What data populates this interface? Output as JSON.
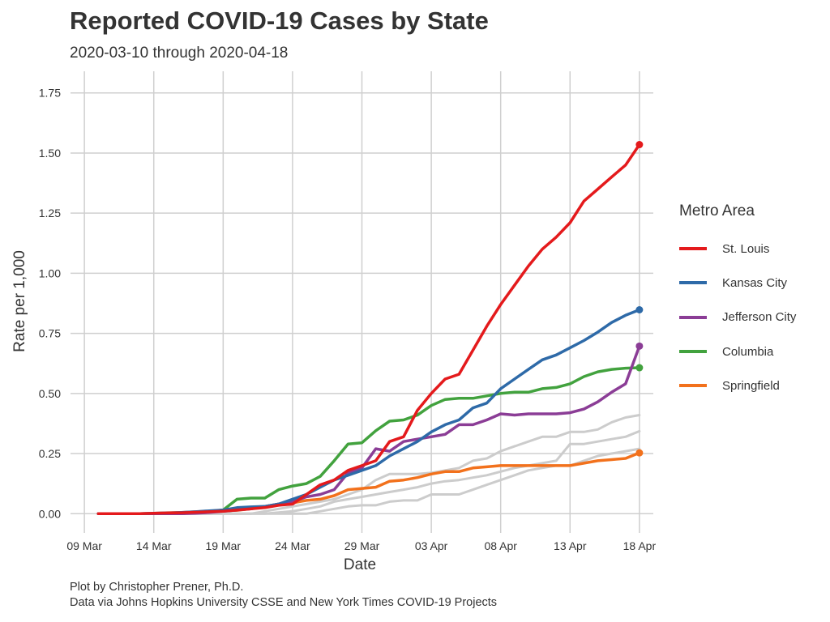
{
  "header": {
    "title": "Reported COVID-19 Cases by State",
    "subtitle": "2020-03-10 through 2020-04-18"
  },
  "footer": {
    "caption_line1": "Plot by Christopher Prener, Ph.D.",
    "caption_line2": "Data via Johns Hopkins University CSSE and New York Times COVID-19 Projects"
  },
  "chart_data": {
    "type": "line",
    "title": "Reported COVID-19 Cases by State",
    "subtitle": "2020-03-10 through 2020-04-18",
    "xlabel": "Date",
    "ylabel": "Rate per 1,000",
    "xlim": [
      "2020-03-08",
      "2020-04-19"
    ],
    "ylim": [
      -0.08,
      1.84
    ],
    "x_ticks": [
      "2020-03-09",
      "2020-03-14",
      "2020-03-19",
      "2020-03-24",
      "2020-03-29",
      "2020-04-03",
      "2020-04-08",
      "2020-04-13",
      "2020-04-18"
    ],
    "x_tick_labels": [
      "09 Mar",
      "14 Mar",
      "19 Mar",
      "24 Mar",
      "29 Mar",
      "03 Apr",
      "08 Apr",
      "13 Apr",
      "18 Apr"
    ],
    "y_ticks": [
      0,
      0.25,
      0.5,
      0.75,
      1.0,
      1.25,
      1.5,
      1.75
    ],
    "y_tick_labels": [
      "0.00",
      "0.25",
      "0.50",
      "0.75",
      "1.00",
      "1.25",
      "1.50",
      "1.75"
    ],
    "grid": true,
    "legend_title": "Metro Area",
    "legend_position": "right",
    "x": [
      "2020-03-10",
      "2020-03-11",
      "2020-03-12",
      "2020-03-13",
      "2020-03-14",
      "2020-03-15",
      "2020-03-16",
      "2020-03-17",
      "2020-03-18",
      "2020-03-19",
      "2020-03-20",
      "2020-03-21",
      "2020-03-22",
      "2020-03-23",
      "2020-03-24",
      "2020-03-25",
      "2020-03-26",
      "2020-03-27",
      "2020-03-28",
      "2020-03-29",
      "2020-03-30",
      "2020-03-31",
      "2020-04-01",
      "2020-04-02",
      "2020-04-03",
      "2020-04-04",
      "2020-04-05",
      "2020-04-06",
      "2020-04-07",
      "2020-04-08",
      "2020-04-09",
      "2020-04-10",
      "2020-04-11",
      "2020-04-12",
      "2020-04-13",
      "2020-04-14",
      "2020-04-15",
      "2020-04-16",
      "2020-04-17",
      "2020-04-18"
    ],
    "series": [
      {
        "name": "St. Louis",
        "color": "#e41a1c",
        "highlight": true,
        "values": [
          0,
          0,
          0,
          0,
          0.002,
          0.003,
          0.004,
          0.006,
          0.008,
          0.01,
          0.015,
          0.02,
          0.025,
          0.035,
          0.04,
          0.08,
          0.12,
          0.14,
          0.18,
          0.2,
          0.22,
          0.3,
          0.32,
          0.43,
          0.5,
          0.56,
          0.58,
          0.68,
          0.78,
          0.87,
          0.95,
          1.03,
          1.1,
          1.15,
          1.21,
          1.3,
          1.35,
          1.4,
          1.45,
          1.535
        ]
      },
      {
        "name": "Kansas City",
        "color": "#2e6aa8",
        "highlight": true,
        "values": [
          0,
          0,
          0,
          0,
          0.002,
          0.003,
          0.005,
          0.008,
          0.012,
          0.015,
          0.025,
          0.028,
          0.03,
          0.04,
          0.06,
          0.08,
          0.11,
          0.14,
          0.16,
          0.18,
          0.2,
          0.24,
          0.27,
          0.3,
          0.34,
          0.37,
          0.39,
          0.44,
          0.46,
          0.52,
          0.56,
          0.6,
          0.64,
          0.66,
          0.69,
          0.72,
          0.755,
          0.795,
          0.825,
          0.848
        ]
      },
      {
        "name": "Jefferson City",
        "color": "#8b3d96",
        "highlight": true,
        "values": [
          0,
          0,
          0,
          0,
          0,
          0,
          0,
          0.002,
          0.005,
          0.01,
          0.015,
          0.02,
          0.03,
          0.04,
          0.05,
          0.07,
          0.08,
          0.1,
          0.17,
          0.19,
          0.27,
          0.26,
          0.3,
          0.31,
          0.32,
          0.33,
          0.37,
          0.37,
          0.39,
          0.415,
          0.41,
          0.415,
          0.415,
          0.415,
          0.42,
          0.435,
          0.465,
          0.505,
          0.54,
          0.697
        ]
      },
      {
        "name": "Columbia",
        "color": "#42a23e",
        "highlight": true,
        "values": [
          0,
          0,
          0,
          0,
          0,
          0,
          0,
          0.005,
          0.01,
          0.015,
          0.06,
          0.065,
          0.065,
          0.1,
          0.115,
          0.125,
          0.155,
          0.22,
          0.29,
          0.295,
          0.345,
          0.385,
          0.39,
          0.41,
          0.45,
          0.475,
          0.48,
          0.48,
          0.49,
          0.5,
          0.505,
          0.505,
          0.52,
          0.525,
          0.54,
          0.57,
          0.59,
          0.6,
          0.605,
          0.607
        ]
      },
      {
        "name": "Springfield",
        "color": "#f2711c",
        "highlight": true,
        "values": [
          0,
          0,
          0,
          0,
          0.002,
          0.004,
          0.005,
          0.008,
          0.01,
          0.012,
          0.014,
          0.02,
          0.03,
          0.04,
          0.045,
          0.055,
          0.06,
          0.075,
          0.1,
          0.105,
          0.11,
          0.135,
          0.14,
          0.15,
          0.165,
          0.175,
          0.175,
          0.19,
          0.195,
          0.2,
          0.2,
          0.2,
          0.2,
          0.2,
          0.2,
          0.21,
          0.22,
          0.225,
          0.23,
          0.253
        ]
      },
      {
        "color": "#cccccc",
        "highlight": false,
        "values": [
          0,
          0,
          0,
          0,
          0,
          0,
          0,
          0,
          0,
          0,
          0,
          0,
          0.01,
          0.02,
          0.03,
          0.04,
          0.05,
          0.06,
          0.08,
          0.1,
          0.14,
          0.165,
          0.165,
          0.165,
          0.17,
          0.18,
          0.19,
          0.22,
          0.23,
          0.26,
          0.28,
          0.3,
          0.32,
          0.32,
          0.34,
          0.34,
          0.35,
          0.38,
          0.4,
          0.41
        ]
      },
      {
        "color": "#cccccc",
        "highlight": false,
        "values": [
          0,
          0,
          0,
          0,
          0,
          0,
          0,
          0,
          0,
          0,
          0,
          0,
          0,
          0.005,
          0.01,
          0.02,
          0.03,
          0.05,
          0.06,
          0.07,
          0.08,
          0.09,
          0.1,
          0.11,
          0.125,
          0.135,
          0.14,
          0.15,
          0.16,
          0.175,
          0.19,
          0.2,
          0.21,
          0.22,
          0.29,
          0.29,
          0.3,
          0.31,
          0.32,
          0.343
        ]
      },
      {
        "color": "#cccccc",
        "highlight": false,
        "values": [
          0,
          0,
          0,
          0,
          0,
          0,
          0,
          0,
          0,
          0,
          0,
          0,
          0,
          0,
          0,
          0,
          0.01,
          0.02,
          0.03,
          0.035,
          0.035,
          0.05,
          0.055,
          0.055,
          0.08,
          0.08,
          0.08,
          0.1,
          0.12,
          0.14,
          0.16,
          0.18,
          0.19,
          0.2,
          0.2,
          0.22,
          0.24,
          0.25,
          0.26,
          0.27
        ]
      }
    ]
  }
}
